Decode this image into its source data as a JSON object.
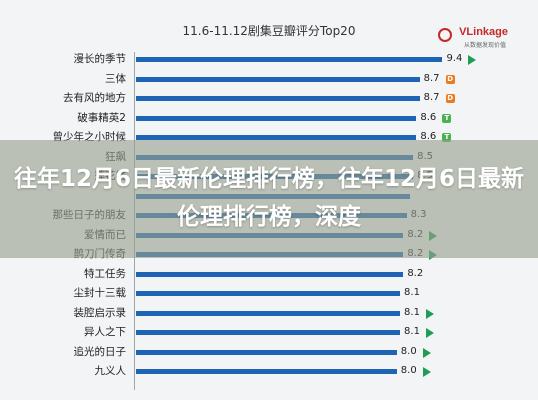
{
  "chart_data": {
    "type": "bar",
    "orientation": "horizontal",
    "title": "11.6-11.12剧集豆瓣评分Top20",
    "categories": [
      "漫长的季节",
      "三体",
      "去有风的地方",
      "破事精英2",
      "曾少年之小时候",
      "狂飙",
      "莲花楼",
      "",
      "那些日子的朋友",
      "爱情而已",
      "鹊刀门传奇",
      "特工任务",
      "尘封十三载",
      "装腔启示录",
      "异人之下",
      "追光的日子",
      "九义人"
    ],
    "values": [
      9.4,
      8.7,
      8.7,
      8.6,
      8.6,
      8.5,
      8.5,
      8.4,
      8.3,
      8.2,
      8.2,
      8.2,
      8.1,
      8.1,
      8.1,
      8.0,
      8.0
    ],
    "value_labels": [
      "9.4",
      "8.7",
      "8.7",
      "8.6",
      "8.6",
      "8.5",
      "8.5",
      "",
      "8.3",
      "8.2",
      "8.2",
      "8.2",
      "8.1",
      "8.1",
      "8.1",
      "8.0",
      "8.0"
    ],
    "platforms": [
      "play",
      "orange",
      "orange",
      "green",
      "green",
      "",
      "",
      "",
      "",
      "play",
      "play",
      "",
      "",
      "play",
      "play",
      "play",
      "play"
    ],
    "xlim": [
      0,
      10
    ],
    "bar_color": "#1e64b4"
  },
  "logo": {
    "name": "VLinkage",
    "sub": "从数据发现价值"
  },
  "banner": {
    "text": "往年12月6日最新伦理排行榜，往年12月6日最新伦理排行榜，深度"
  }
}
